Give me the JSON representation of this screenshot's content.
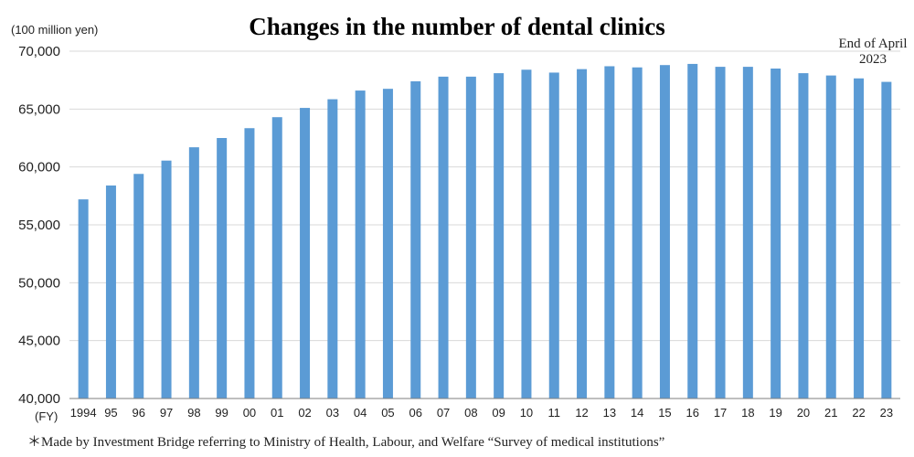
{
  "chart_data": {
    "type": "bar",
    "title": "Changes in the number of dental clinics",
    "unit_label": "(100 million yen)",
    "x_unit_label": "(FY)",
    "annotation": [
      "End of April",
      "2023"
    ],
    "footnote": "＊Made by Investment Bridge referring to Ministry of Health, Labour, and Welfare “Survey of medical institutions”",
    "categories": [
      "1994",
      "95",
      "96",
      "97",
      "98",
      "99",
      "00",
      "01",
      "02",
      "03",
      "04",
      "05",
      "06",
      "07",
      "08",
      "09",
      "10",
      "11",
      "12",
      "13",
      "14",
      "15",
      "16",
      "17",
      "18",
      "19",
      "20",
      "21",
      "22",
      "23"
    ],
    "values": [
      57200,
      58400,
      59400,
      60550,
      61700,
      62500,
      63350,
      64300,
      65100,
      65850,
      66600,
      66750,
      67400,
      67800,
      67800,
      68100,
      68400,
      68150,
      68450,
      68700,
      68600,
      68800,
      68900,
      68650,
      68650,
      68500,
      68100,
      67900,
      67650,
      67350
    ],
    "ylim": [
      40000,
      70000
    ],
    "yticks": [
      40000,
      45000,
      50000,
      55000,
      60000,
      65000,
      70000
    ],
    "ytick_labels": [
      "40,000",
      "45,000",
      "50,000",
      "55,000",
      "60,000",
      "65,000",
      "70,000"
    ],
    "grid": true,
    "bar_color": "#5b9bd5"
  }
}
